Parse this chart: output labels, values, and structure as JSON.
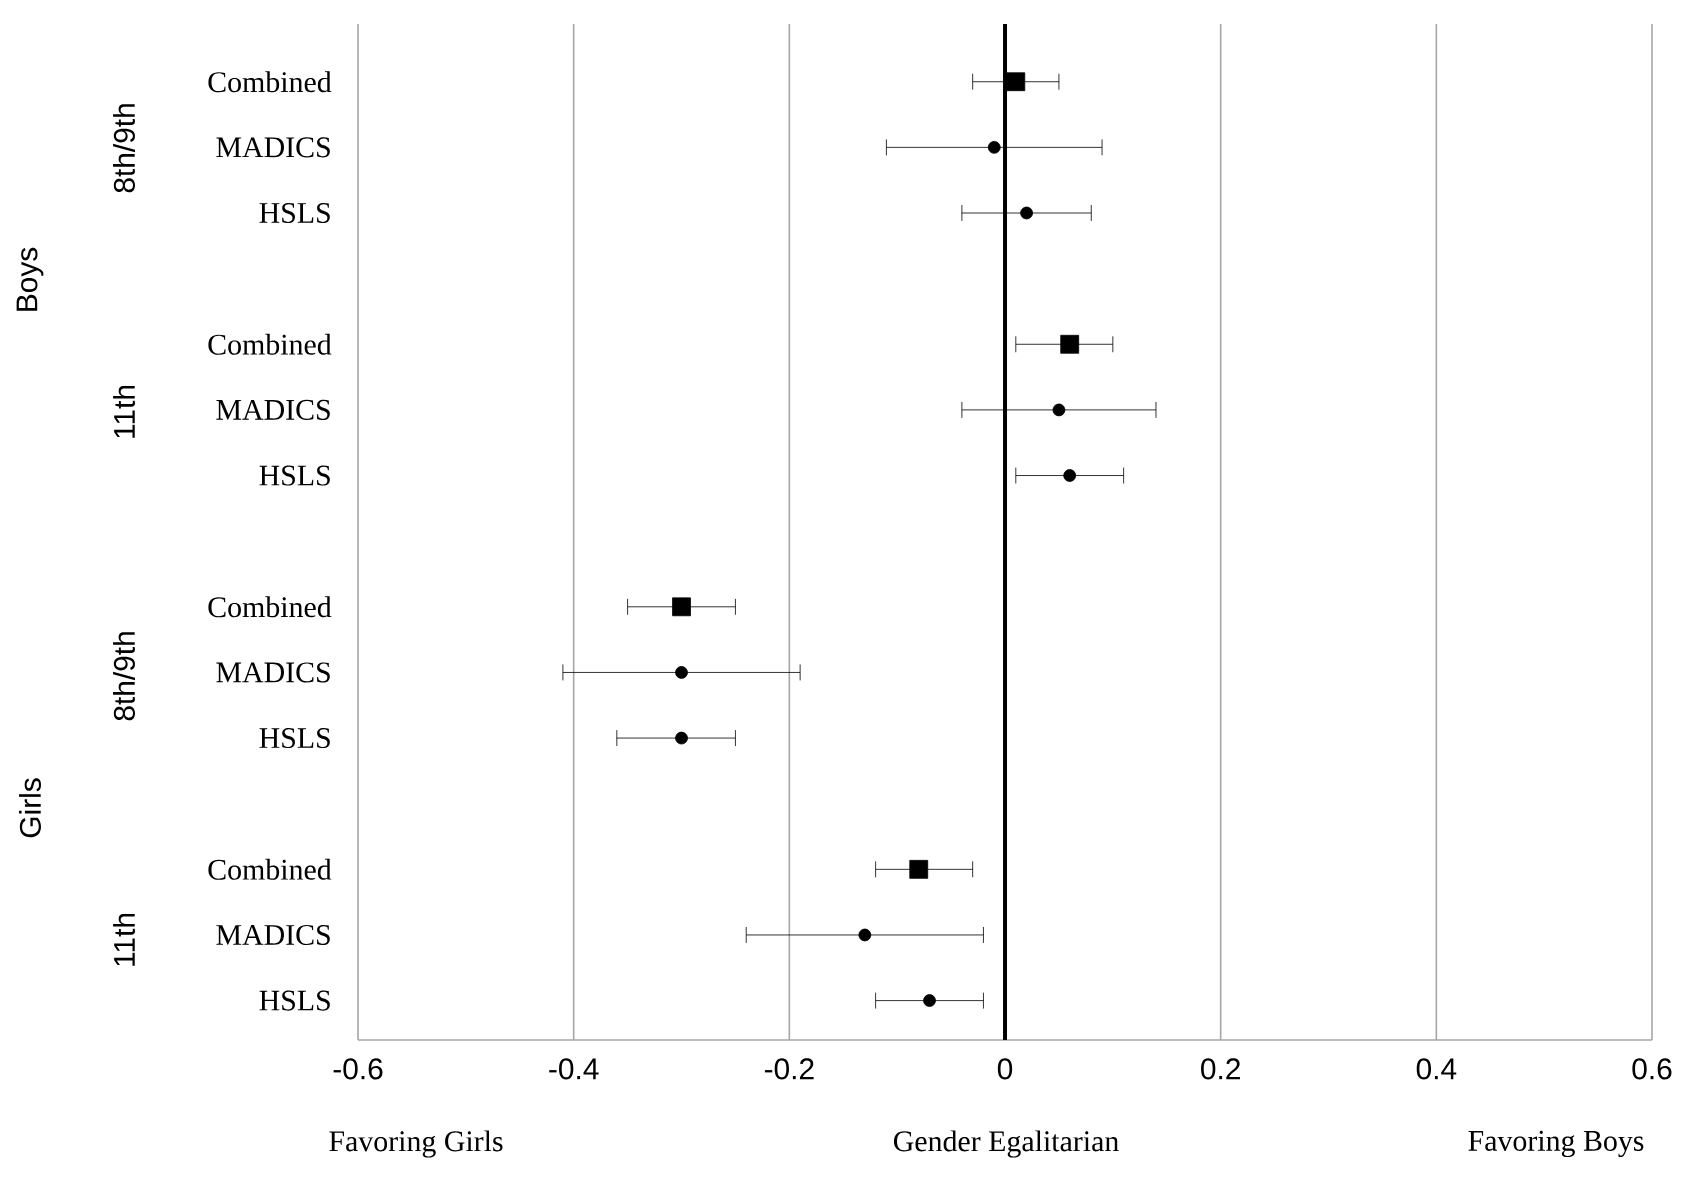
{
  "chart_data": {
    "type": "scatter",
    "orientation": "horizontal",
    "categories": [
      "Combined",
      "MADICS",
      "HSLS",
      "Combined",
      "MADICS",
      "HSLS",
      "Combined",
      "MADICS",
      "HSLS",
      "Combined",
      "MADICS",
      "HSLS"
    ],
    "series": [
      {
        "color": "#000000",
        "marker": "square",
        "values": [
          0.01,
          null,
          null,
          0.06,
          null,
          null,
          -0.3,
          null,
          null,
          -0.08,
          null,
          null
        ],
        "errors": [
          [
            -0.03,
            0.05
          ],
          null,
          null,
          [
            0.01,
            0.1
          ],
          null,
          null,
          [
            -0.35,
            -0.25
          ],
          null,
          null,
          [
            -0.12,
            -0.03
          ],
          null,
          null
        ]
      },
      {
        "color": "#000000",
        "marker": "circle",
        "values": [
          null,
          -0.01,
          0.02,
          null,
          0.05,
          0.06,
          null,
          -0.3,
          -0.3,
          null,
          -0.13,
          -0.07
        ],
        "errors": [
          null,
          [
            -0.11,
            0.09
          ],
          [
            -0.04,
            0.08
          ],
          null,
          [
            -0.04,
            0.14
          ],
          [
            0.01,
            0.11
          ],
          null,
          [
            -0.41,
            -0.19
          ],
          [
            -0.36,
            -0.25
          ],
          null,
          [
            -0.24,
            -0.02
          ],
          [
            -0.12,
            -0.02
          ]
        ]
      }
    ],
    "xlim": [
      -0.6,
      0.6
    ],
    "xticks": [
      -0.6,
      -0.4,
      -0.2,
      0,
      0.2,
      0.4,
      0.6
    ],
    "grid": "x",
    "ref_lines": [
      {
        "axis": "x",
        "value": 0,
        "color": "#000000"
      }
    ],
    "annotations": [
      "Boys",
      "Girls",
      "8th/9th",
      "11th",
      "8th/9th",
      "11th",
      "Favoring Girls",
      "Gender Egalitarian",
      "Favoring Boys"
    ]
  }
}
